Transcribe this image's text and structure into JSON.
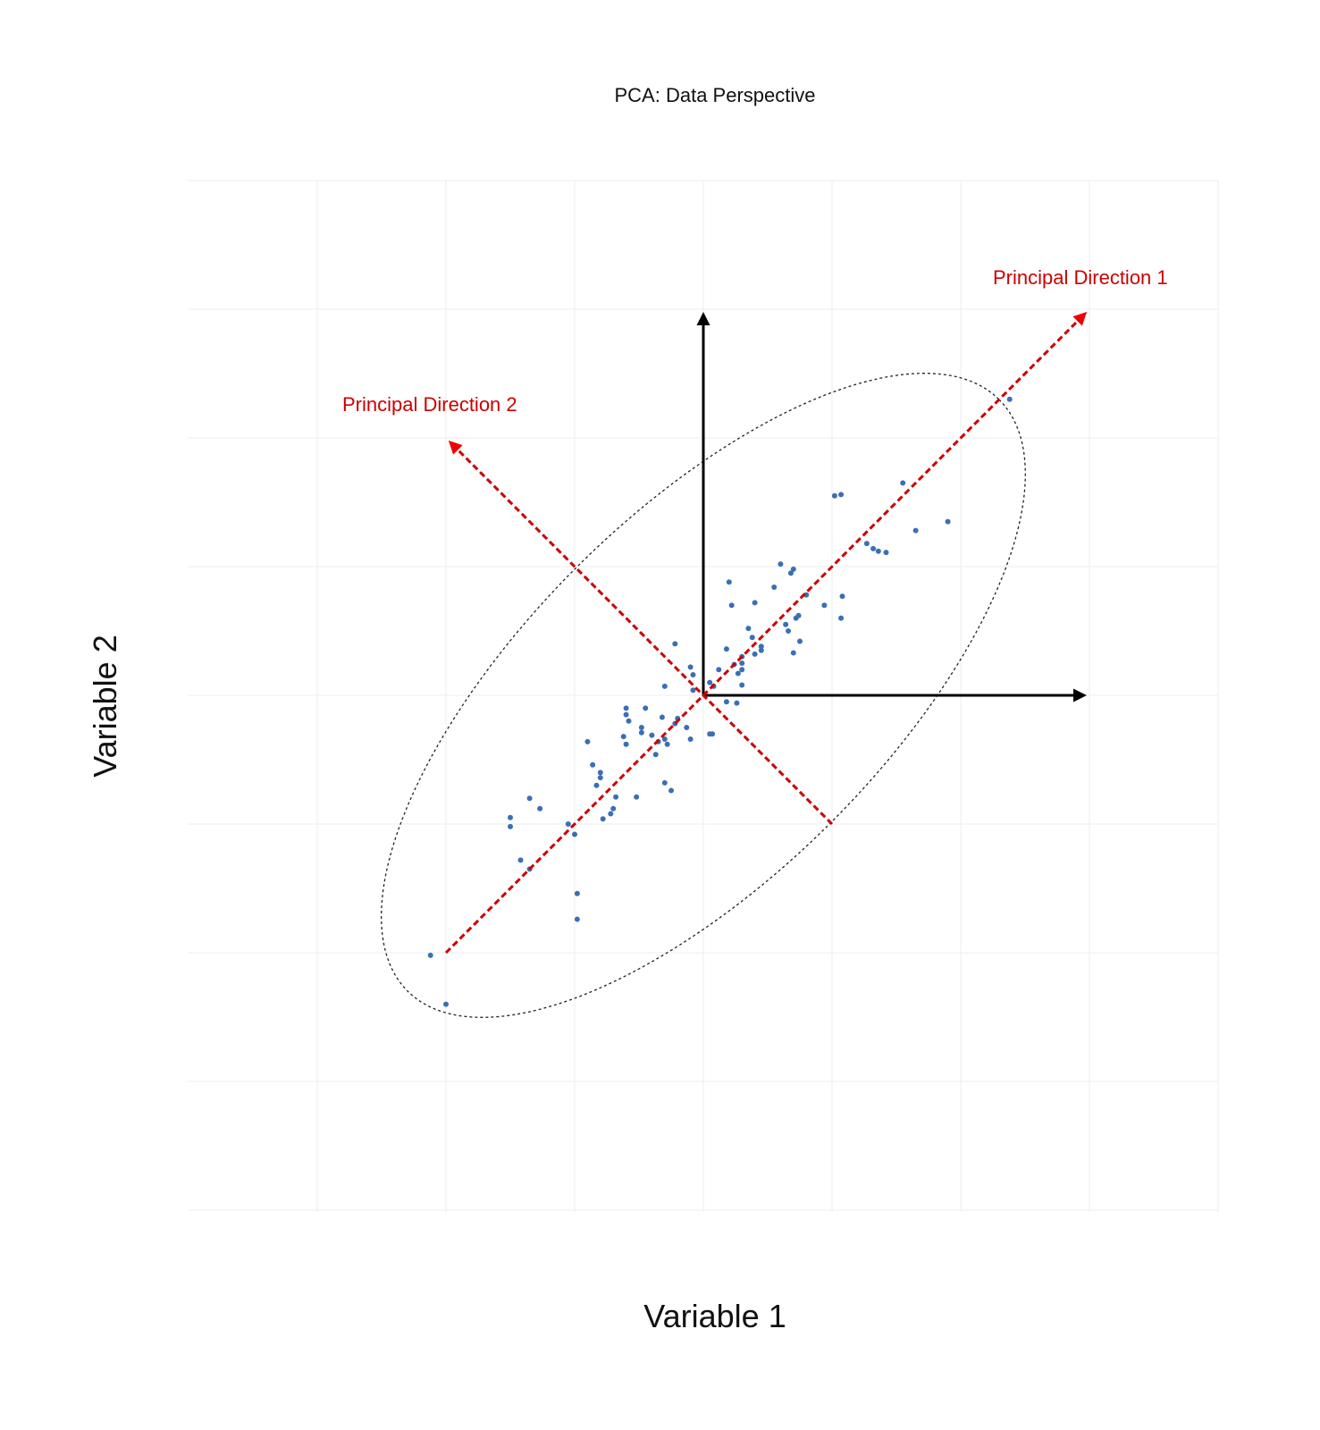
{
  "chart_data": {
    "type": "scatter",
    "title": "PCA: Data Perspective",
    "xlabel": "Variable 1",
    "ylabel": "Variable 2",
    "xlim": [
      -3,
      4
    ],
    "ylim": [
      -4,
      4
    ],
    "grid": true,
    "colors": {
      "points": "#3a6fb5",
      "principal": "#cc0000",
      "axes": "#000000",
      "ellipse": "#222222",
      "grid": "#eeeeee"
    },
    "annotations": [
      {
        "text": "Principal Direction 1"
      },
      {
        "text": "Principal Direction 2"
      }
    ],
    "arrows": {
      "axis_x": {
        "from": [
          0,
          0
        ],
        "to": [
          3,
          0
        ]
      },
      "axis_y": {
        "from": [
          0,
          0
        ],
        "to": [
          0,
          3
        ]
      },
      "principal_1": {
        "from": [
          -2,
          -2
        ],
        "to": [
          3,
          3
        ]
      },
      "principal_2": {
        "from": [
          1,
          -1
        ],
        "to": [
          -2,
          2
        ]
      }
    },
    "ellipse": {
      "center": [
        0,
        0
      ],
      "angle_deg": 45,
      "semi_major": 3.25,
      "semi_minor": 1.4
    },
    "points": [
      [
        -2.12,
        -2.02
      ],
      [
        -2.0,
        -2.4
      ],
      [
        -1.5,
        -0.95
      ],
      [
        -1.5,
        -1.02
      ],
      [
        -1.42,
        -1.28
      ],
      [
        -1.35,
        -1.35
      ],
      [
        -1.35,
        -0.8
      ],
      [
        -1.27,
        -0.88
      ],
      [
        -1.05,
        -1.0
      ],
      [
        -1.0,
        -1.08
      ],
      [
        -0.98,
        -1.54
      ],
      [
        -0.98,
        -1.74
      ],
      [
        -0.9,
        -0.36
      ],
      [
        -0.86,
        -0.54
      ],
      [
        -0.83,
        -0.7
      ],
      [
        -0.8,
        -0.6
      ],
      [
        -0.8,
        -0.64
      ],
      [
        -0.78,
        -0.96
      ],
      [
        -0.72,
        -0.92
      ],
      [
        -0.7,
        -0.88
      ],
      [
        -0.68,
        -0.79
      ],
      [
        -0.62,
        -0.32
      ],
      [
        -0.6,
        -0.38
      ],
      [
        -0.6,
        -0.1
      ],
      [
        -0.6,
        -0.15
      ],
      [
        -0.58,
        -0.2
      ],
      [
        -0.52,
        -0.79
      ],
      [
        -0.48,
        -0.25
      ],
      [
        -0.48,
        -0.29
      ],
      [
        -0.45,
        -0.1
      ],
      [
        -0.4,
        -0.31
      ],
      [
        -0.37,
        -0.46
      ],
      [
        -0.35,
        -0.36
      ],
      [
        -0.32,
        -0.17
      ],
      [
        -0.3,
        -0.34
      ],
      [
        -0.3,
        -0.68
      ],
      [
        -0.3,
        0.07
      ],
      [
        -0.28,
        -0.38
      ],
      [
        -0.25,
        -0.74
      ],
      [
        -0.22,
        -0.22
      ],
      [
        -0.2,
        -0.18
      ],
      [
        -0.22,
        0.4
      ],
      [
        -0.13,
        -0.25
      ],
      [
        -0.1,
        0.22
      ],
      [
        -0.1,
        -0.34
      ],
      [
        -0.08,
        0.16
      ],
      [
        -0.08,
        0.04
      ],
      [
        0.05,
        -0.3
      ],
      [
        0.07,
        -0.3
      ],
      [
        0.05,
        0.1
      ],
      [
        0.08,
        0.07
      ],
      [
        0.12,
        0.2
      ],
      [
        0.18,
        0.36
      ],
      [
        0.18,
        -0.05
      ],
      [
        0.2,
        0.88
      ],
      [
        0.22,
        0.7
      ],
      [
        0.24,
        0.24
      ],
      [
        0.26,
        -0.06
      ],
      [
        0.27,
        0.17
      ],
      [
        0.3,
        0.3
      ],
      [
        0.3,
        0.25
      ],
      [
        0.3,
        0.2
      ],
      [
        0.3,
        0.08
      ],
      [
        0.35,
        0.52
      ],
      [
        0.38,
        0.45
      ],
      [
        0.4,
        0.32
      ],
      [
        0.4,
        0.72
      ],
      [
        0.45,
        0.35
      ],
      [
        0.45,
        0.38
      ],
      [
        0.55,
        0.84
      ],
      [
        0.6,
        1.02
      ],
      [
        0.64,
        0.55
      ],
      [
        0.66,
        0.5
      ],
      [
        0.68,
        0.95
      ],
      [
        0.7,
        0.33
      ],
      [
        0.7,
        0.98
      ],
      [
        0.72,
        0.6
      ],
      [
        0.74,
        0.62
      ],
      [
        0.75,
        0.42
      ],
      [
        0.8,
        0.78
      ],
      [
        0.94,
        0.7
      ],
      [
        1.02,
        1.55
      ],
      [
        1.07,
        1.56
      ],
      [
        1.07,
        0.6
      ],
      [
        1.08,
        0.77
      ],
      [
        1.27,
        1.18
      ],
      [
        1.32,
        1.14
      ],
      [
        1.36,
        1.12
      ],
      [
        1.42,
        1.11
      ],
      [
        1.55,
        1.65
      ],
      [
        1.65,
        1.28
      ],
      [
        1.9,
        1.35
      ],
      [
        2.38,
        2.3
      ]
    ]
  }
}
